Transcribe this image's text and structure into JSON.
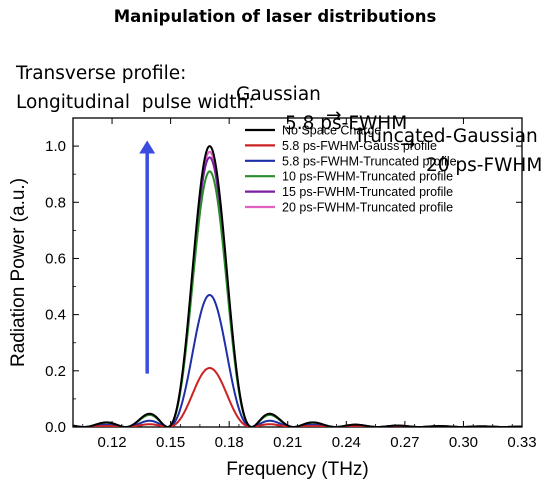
{
  "header": {
    "title": "Manipulation of laser distributions",
    "transverse": {
      "label": "Transverse profile:",
      "from": "Gaussian",
      "to": "Truncated-Gaussian"
    },
    "longitudinal": {
      "label": "Longitudinal  pulse width:",
      "from": "5.8 ps-FWHM",
      "to": "20 ps-FWHM"
    },
    "arrow_glyph": "→"
  },
  "chart_data": {
    "type": "line",
    "title": "",
    "xlabel": "Frequency (THz)",
    "ylabel": "Radiation Power (a.u.)",
    "xlim": [
      0.1,
      0.33
    ],
    "ylim": [
      0.0,
      1.1
    ],
    "xticks": [
      "0.12",
      "0.15",
      "0.18",
      "0.21",
      "0.24",
      "0.27",
      "0.30",
      "0.33"
    ],
    "yticks": [
      "0.0",
      "0.2",
      "0.4",
      "0.6",
      "0.8",
      "1.0"
    ],
    "legend_position": "top-right",
    "center_frequency": 0.17,
    "series": [
      {
        "name": "No Space Charge",
        "color": "#000000",
        "peak": 1.0
      },
      {
        "name": "5.8 ps-FWHM-Gauss profile",
        "color": "#cc2222",
        "peak": 0.21
      },
      {
        "name": "5.8 ps-FWHM-Truncated profile",
        "color": "#1f2fa8",
        "peak": 0.47
      },
      {
        "name": "10 ps-FWHM-Truncated profile",
        "color": "#2a8c2a",
        "peak": 0.91
      },
      {
        "name": "15 ps-FWHM-Truncated profile",
        "color": "#7a1fa0",
        "peak": 0.96
      },
      {
        "name": "20 ps-FWHM-Truncated profile",
        "color": "#e060c0",
        "peak": 0.98
      }
    ],
    "annotation_arrow": {
      "x": 0.138,
      "y_from": 0.19,
      "y_to": 1.02,
      "color": "#3a4de0"
    }
  }
}
